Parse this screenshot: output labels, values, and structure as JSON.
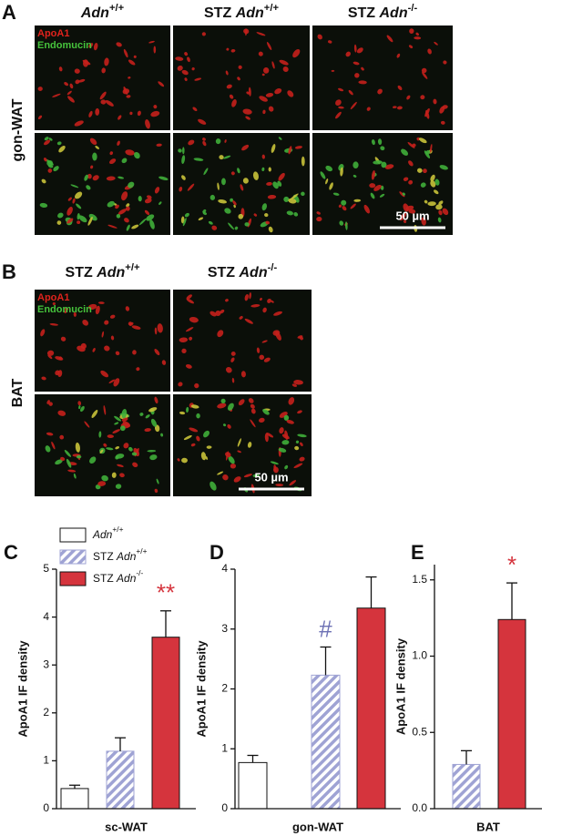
{
  "figure": {
    "panel_a": {
      "letter": "A",
      "row_label": "gon-WAT",
      "columns": [
        {
          "gene": "Adn",
          "sup": "+/+"
        },
        {
          "prefix": "STZ",
          "gene": "Adn",
          "sup": "+/+"
        },
        {
          "prefix": "STZ",
          "gene": "Adn",
          "sup": "-/-"
        }
      ],
      "stain_labels": [
        "ApoA1",
        "Endomucin"
      ],
      "scale_bar": "50 µm"
    },
    "panel_b": {
      "letter": "B",
      "row_label": "BAT",
      "columns": [
        {
          "prefix": "STZ",
          "gene": "Adn",
          "sup": "+/+"
        },
        {
          "prefix": "STZ",
          "gene": "Adn",
          "sup": "-/-"
        }
      ],
      "stain_labels": [
        "ApoA1",
        "Endomucin"
      ],
      "scale_bar": "50 µm"
    }
  },
  "chart_data": [
    {
      "type": "bar",
      "panel": "C",
      "ylabel": "ApoA1 IF density",
      "xlabel": "sc-WAT",
      "values": [
        0.42,
        1.2,
        3.58
      ],
      "errors": [
        0.07,
        0.28,
        0.55
      ],
      "colors": [
        "#ffffff",
        "#9fa3d4",
        "#d5343d"
      ],
      "hatched": [
        false,
        true,
        false
      ],
      "value_annotations": [
        null,
        null,
        "**"
      ],
      "annotation_color": "#d5343d",
      "ylim": [
        0,
        5
      ],
      "yticks": [
        0,
        1,
        2,
        3,
        4,
        5
      ],
      "legend": [
        {
          "gene": "Adn",
          "sup": "+/+"
        },
        {
          "prefix": "STZ",
          "gene": "Adn",
          "sup": "+/+"
        },
        {
          "prefix": "STZ",
          "gene": "Adn",
          "sup": "-/-"
        }
      ]
    },
    {
      "type": "bar",
      "panel": "D",
      "ylabel": "ApoA1 IF density",
      "xlabel": "gon-WAT",
      "values": [
        0.77,
        2.23,
        3.35
      ],
      "errors": [
        0.12,
        0.47,
        0.52
      ],
      "colors": [
        "#ffffff",
        "#9fa3d4",
        "#d5343d"
      ],
      "hatched": [
        false,
        true,
        false
      ],
      "value_annotations": [
        null,
        "#",
        null
      ],
      "annotation_color": "#6c70b4",
      "ylim": [
        0,
        4
      ],
      "yticks": [
        0,
        1,
        2,
        3,
        4
      ]
    },
    {
      "type": "bar",
      "panel": "E",
      "ylabel": "ApoA1 IF density",
      "xlabel": "BAT",
      "values": [
        0.29,
        1.24
      ],
      "errors": [
        0.09,
        0.24
      ],
      "colors": [
        "#9fa3d4",
        "#d5343d"
      ],
      "hatched": [
        true,
        false
      ],
      "value_annotations": [
        null,
        "*"
      ],
      "annotation_color": "#d5343d",
      "ylim": [
        0,
        1.6
      ],
      "yticks": [
        {
          "value": 0,
          "label": "0.0"
        },
        0.5,
        {
          "value": 1,
          "label": "1.0"
        },
        1.5
      ]
    }
  ]
}
